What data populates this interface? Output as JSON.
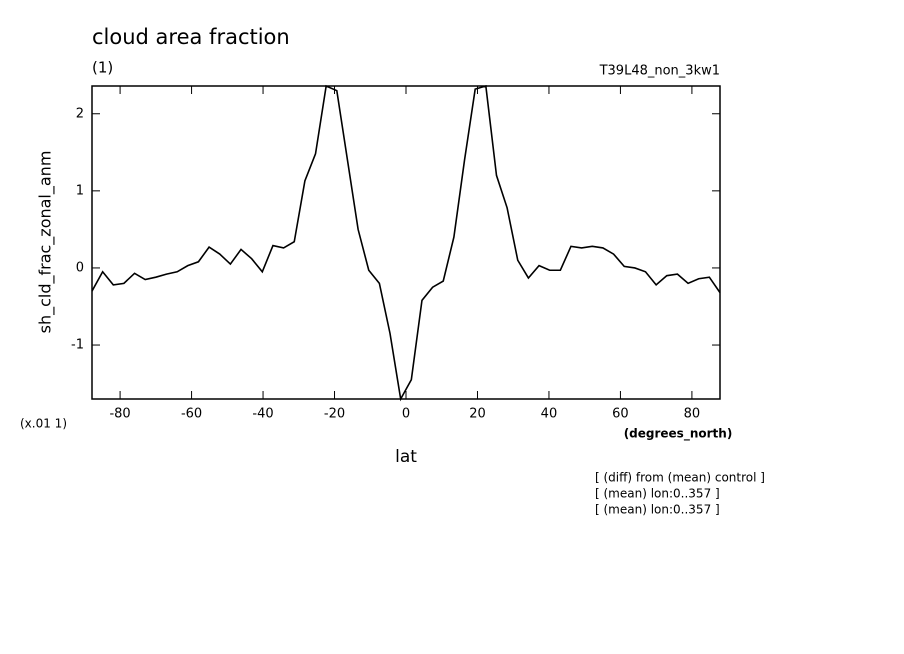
{
  "chart_data": {
    "type": "line",
    "title": "cloud area fraction",
    "subtitle": "(1)",
    "experiment": "T39L48_non_3kw1",
    "y_label": "sh_cld_frac_zonal_anm",
    "y_scale_note": "(x.01 1)",
    "x_units": "(degrees_north)",
    "x_label": "lat",
    "annotations": [
      "[ (diff) from (mean) control ]",
      "[ (mean) lon:0..357 ]",
      "[ (mean) lon:0..357 ]"
    ],
    "x": [
      -87.86,
      -84.88,
      -81.9,
      -78.93,
      -75.95,
      -72.97,
      -69.99,
      -67.01,
      -64.03,
      -61.06,
      -58.08,
      -55.1,
      -52.12,
      -49.14,
      -46.16,
      -43.19,
      -40.21,
      -37.23,
      -34.25,
      -31.27,
      -28.29,
      -25.32,
      -22.34,
      -19.36,
      -16.38,
      -13.4,
      -10.42,
      -7.45,
      -4.47,
      -1.49,
      1.49,
      4.47,
      7.45,
      10.42,
      13.4,
      16.38,
      19.36,
      22.34,
      25.32,
      28.29,
      31.27,
      34.25,
      37.23,
      40.21,
      43.19,
      46.16,
      49.14,
      52.12,
      55.1,
      58.08,
      61.06,
      64.03,
      67.01,
      69.99,
      72.97,
      75.95,
      78.93,
      81.9,
      84.88,
      87.86
    ],
    "series": [
      {
        "name": "sh_cld_frac_zonal_anm",
        "color": "#000000",
        "values": [
          -0.3,
          -0.05,
          -0.22,
          -0.2,
          -0.07,
          -0.15,
          -0.12,
          -0.08,
          -0.05,
          0.03,
          0.08,
          0.27,
          0.18,
          0.05,
          0.24,
          0.12,
          -0.05,
          0.29,
          0.26,
          0.34,
          1.13,
          1.48,
          2.36,
          2.3,
          1.4,
          0.5,
          -0.03,
          -0.2,
          -0.85,
          -1.7,
          -1.45,
          -0.42,
          -0.25,
          -0.17,
          0.4,
          1.4,
          2.32,
          2.36,
          1.2,
          0.78,
          0.1,
          -0.13,
          0.03,
          -0.03,
          -0.03,
          0.28,
          0.26,
          0.28,
          0.26,
          0.18,
          0.02,
          0.0,
          -0.05,
          -0.22,
          -0.1,
          -0.08,
          -0.2,
          -0.14,
          -0.12,
          -0.32
        ]
      }
    ],
    "xlim": [
      -87.86,
      87.86
    ],
    "ylim": [
      -1.7,
      2.36
    ],
    "xticks": [
      -80,
      -60,
      -40,
      -20,
      0,
      20,
      40,
      60,
      80
    ],
    "yticks": [
      -1,
      0,
      1,
      2
    ],
    "grid": false
  }
}
